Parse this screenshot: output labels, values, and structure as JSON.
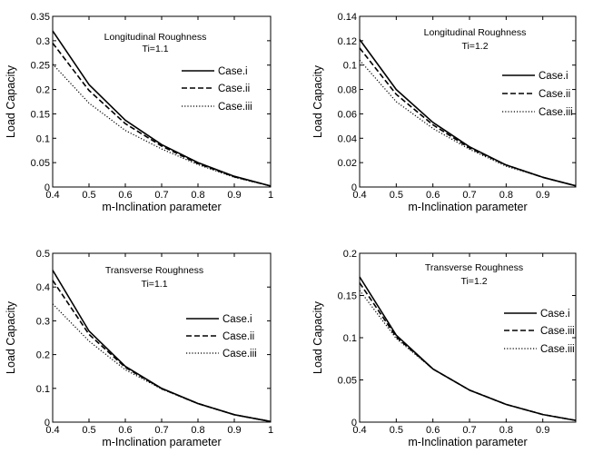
{
  "chart_data": [
    {
      "type": "line",
      "xlabel": "m-Inclination parameter",
      "ylabel": "Load Capacity",
      "xlim": [
        0.4,
        1.0
      ],
      "ylim": [
        0,
        0.35
      ],
      "xticks": [
        0.4,
        0.5,
        0.6,
        0.7,
        0.8,
        0.9,
        1
      ],
      "xtick_labels": [
        "0.4",
        "0.5",
        "0.6",
        "0.7",
        "0.8",
        "0.9",
        "1"
      ],
      "yticks": [
        0,
        0.05,
        0.1,
        0.15,
        0.2,
        0.25,
        0.3,
        0.35
      ],
      "ytick_labels": [
        "0",
        "0.05",
        "0.1",
        "0.15",
        "0.2",
        "0.25",
        "0.3",
        "0.35"
      ],
      "annotations": [
        "Longitudinal Roughness",
        "Ti=1.1"
      ],
      "legend_placement": "top-right",
      "grid": false,
      "x": [
        0.4,
        0.5,
        0.6,
        0.7,
        0.8,
        0.9,
        1.0
      ],
      "series": [
        {
          "name": "Case.i",
          "style": "solid",
          "values": [
            0.32,
            0.21,
            0.137,
            0.087,
            0.05,
            0.022,
            0.002
          ]
        },
        {
          "name": "Case.ii",
          "style": "dashed",
          "values": [
            0.295,
            0.198,
            0.13,
            0.084,
            0.048,
            0.021,
            0.002
          ]
        },
        {
          "name": "Case.iii",
          "style": "dotted",
          "values": [
            0.252,
            0.172,
            0.116,
            0.078,
            0.046,
            0.02,
            0.002
          ]
        }
      ]
    },
    {
      "type": "line",
      "xlabel": "m-Inclination parameter",
      "ylabel": "Load Capacity",
      "xlim": [
        0.4,
        0.99
      ],
      "ylim": [
        0,
        0.14
      ],
      "xticks": [
        0.4,
        0.5,
        0.6,
        0.7,
        0.8,
        0.9
      ],
      "xtick_labels": [
        "0.4",
        "0.5",
        "0.6",
        "0.7",
        "0.8",
        "0.9"
      ],
      "yticks": [
        0,
        0.02,
        0.04,
        0.06,
        0.08,
        0.1,
        0.12,
        0.14
      ],
      "ytick_labels": [
        "0",
        "0.02",
        "0.04",
        "0.06",
        "0.08",
        "0.1",
        "0.12",
        "0.14"
      ],
      "annotations": [
        "Longitudinal Roughness",
        "Ti=1.2"
      ],
      "legend_placement": "top-right",
      "grid": false,
      "x": [
        0.4,
        0.5,
        0.6,
        0.7,
        0.8,
        0.9,
        0.99
      ],
      "series": [
        {
          "name": "Case.i",
          "style": "solid",
          "values": [
            0.121,
            0.08,
            0.053,
            0.033,
            0.018,
            0.008,
            0.001
          ]
        },
        {
          "name": "Case.ii",
          "style": "dashed",
          "values": [
            0.114,
            0.076,
            0.051,
            0.032,
            0.018,
            0.008,
            0.001
          ]
        },
        {
          "name": "Case.iii",
          "style": "dotted",
          "values": [
            0.104,
            0.07,
            0.048,
            0.031,
            0.017,
            0.008,
            0.001
          ]
        }
      ]
    },
    {
      "type": "line",
      "xlabel": "m-Inclination parameter",
      "ylabel": "Load Capacity",
      "xlim": [
        0.4,
        1.0
      ],
      "ylim": [
        0,
        0.5
      ],
      "xticks": [
        0.4,
        0.5,
        0.6,
        0.7,
        0.8,
        0.9,
        1
      ],
      "xtick_labels": [
        "0.4",
        "0.5",
        "0.6",
        "0.7",
        "0.8",
        "0.9",
        "1"
      ],
      "yticks": [
        0,
        0.1,
        0.2,
        0.3,
        0.4,
        0.5
      ],
      "ytick_labels": [
        "0",
        "0.1",
        "0.2",
        "0.3",
        "0.4",
        "0.5"
      ],
      "annotations": [
        "Transverse Roughness",
        "Ti=1.1"
      ],
      "legend_placement": "right",
      "grid": false,
      "x": [
        0.4,
        0.5,
        0.6,
        0.7,
        0.8,
        0.9,
        1.0
      ],
      "series": [
        {
          "name": "Case.i",
          "style": "solid",
          "values": [
            0.45,
            0.27,
            0.165,
            0.1,
            0.055,
            0.022,
            0.002
          ]
        },
        {
          "name": "Case.ii",
          "style": "dashed",
          "values": [
            0.42,
            0.26,
            0.162,
            0.099,
            0.055,
            0.022,
            0.002
          ]
        },
        {
          "name": "Case.iii",
          "style": "dotted",
          "values": [
            0.35,
            0.24,
            0.155,
            0.098,
            0.054,
            0.022,
            0.002
          ]
        }
      ]
    },
    {
      "type": "line",
      "xlabel": "m-Inclination parameter",
      "ylabel": "Load Capacity",
      "xlim": [
        0.4,
        0.99
      ],
      "ylim": [
        0,
        0.2
      ],
      "xticks": [
        0.4,
        0.5,
        0.6,
        0.7,
        0.8,
        0.9
      ],
      "xtick_labels": [
        "0.4",
        "0.5",
        "0.6",
        "0.7",
        "0.8",
        "0.9"
      ],
      "yticks": [
        0,
        0.05,
        0.1,
        0.15,
        0.2
      ],
      "ytick_labels": [
        "0",
        "0.05",
        "0.1",
        "0.15",
        "0.2"
      ],
      "annotations": [
        "Transverse Roughness",
        "Ti=1.2"
      ],
      "legend_placement": "right",
      "grid": false,
      "x": [
        0.4,
        0.5,
        0.6,
        0.7,
        0.8,
        0.9,
        0.99
      ],
      "series": [
        {
          "name": "Case.i",
          "style": "solid",
          "values": [
            0.172,
            0.103,
            0.063,
            0.038,
            0.021,
            0.009,
            0.002
          ]
        },
        {
          "name": "Case.iii",
          "style": "dashed",
          "values": [
            0.165,
            0.101,
            0.063,
            0.038,
            0.021,
            0.009,
            0.002
          ]
        },
        {
          "name": "Case.iii",
          "style": "dotted",
          "values": [
            0.156,
            0.099,
            0.063,
            0.038,
            0.021,
            0.009,
            0.002
          ]
        }
      ]
    }
  ]
}
